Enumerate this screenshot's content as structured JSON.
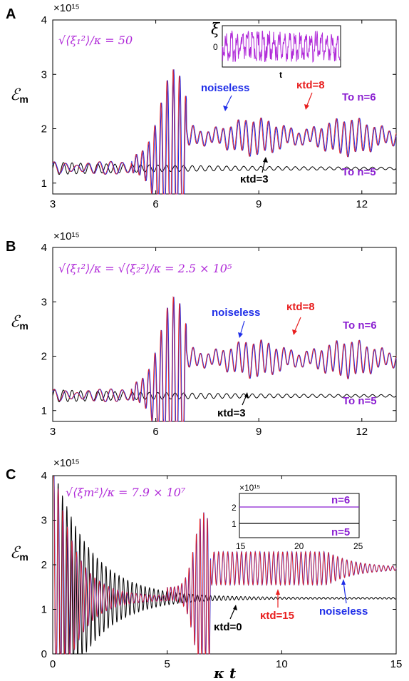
{
  "colors": {
    "noiseless": "#1f2ee8",
    "delayed": "#e81f1f",
    "black": "#000000",
    "purple": "#b02ad8",
    "violet": "#8b1fd1"
  },
  "ylabel": "ℰm",
  "xlabel": "κ t",
  "chart_data": [
    {
      "panel": "A",
      "type": "line",
      "formula": "√⟨ξ₁²⟩/κ = 50",
      "exponent": "×10¹⁵",
      "xlim": [
        3,
        13
      ],
      "ylim": [
        0.8,
        4
      ],
      "xticks": [
        "3",
        "6",
        "9",
        "12"
      ],
      "yticks": [
        "1",
        "2",
        "3",
        "4"
      ],
      "series": [
        {
          "name": "noiseless",
          "approx_mean_after_transition": 1.85,
          "transition_time": 6.9
        },
        {
          "name": "κtd=8",
          "approx_mean_after_transition": 1.85,
          "transition_time": 6.9
        },
        {
          "name": "κtd=3",
          "approx_mean_after_transition": 1.25
        }
      ],
      "annotations": [
        {
          "text": "noiseless",
          "color": "noiseless"
        },
        {
          "text": "κtd=8",
          "color": "delayed"
        },
        {
          "text": "κtd=3",
          "color": "black"
        },
        {
          "text": "To n=6",
          "color": "violet"
        },
        {
          "text": "To n=5",
          "color": "violet"
        }
      ],
      "inset": {
        "ylabel": "ξ",
        "ytick": "0",
        "xlabel": "t"
      }
    },
    {
      "panel": "B",
      "type": "line",
      "formula": "√⟨ξ₁²⟩/κ = √⟨ξ₂²⟩/κ = 2.5 × 10⁵",
      "exponent": "×10¹⁵",
      "xlim": [
        3,
        13
      ],
      "ylim": [
        0.8,
        4
      ],
      "xticks": [
        "3",
        "6",
        "9",
        "12"
      ],
      "yticks": [
        "1",
        "2",
        "3",
        "4"
      ],
      "series": [
        {
          "name": "noiseless",
          "approx_mean_after_transition": 1.95,
          "transition_time": 6.9
        },
        {
          "name": "κtd=8",
          "approx_mean_after_transition": 1.95,
          "transition_time": 6.9
        },
        {
          "name": "κtd=3",
          "approx_mean_after_transition": 1.25
        }
      ],
      "annotations": [
        {
          "text": "noiseless",
          "color": "noiseless"
        },
        {
          "text": "κtd=8",
          "color": "delayed"
        },
        {
          "text": "κtd=3",
          "color": "black"
        },
        {
          "text": "To n=6",
          "color": "violet"
        },
        {
          "text": "To n=5",
          "color": "violet"
        }
      ]
    },
    {
      "panel": "C",
      "type": "line",
      "formula": "√⟨ξm²⟩/κ = 7.9 × 10⁷",
      "exponent": "×10¹⁵",
      "xlim": [
        0,
        15
      ],
      "ylim": [
        0,
        4
      ],
      "xticks": [
        "0",
        "5",
        "10",
        "15"
      ],
      "yticks": [
        "0",
        "1",
        "2",
        "3",
        "4"
      ],
      "series": [
        {
          "name": "noiseless",
          "approx_final_value": 1.9,
          "transition_time": 6.9
        },
        {
          "name": "κtd=15",
          "approx_final_value": 1.9
        },
        {
          "name": "κtd=0",
          "approx_final_value": 1.25
        }
      ],
      "annotations": [
        {
          "text": "κtd=0",
          "color": "black"
        },
        {
          "text": "κtd=15",
          "color": "delayed"
        },
        {
          "text": "noiseless",
          "color": "noiseless"
        }
      ],
      "inset": {
        "exponent": "×10¹⁵",
        "xticks": [
          "15",
          "20",
          "25"
        ],
        "yticks": [
          "1",
          "2"
        ],
        "labels": [
          {
            "text": "n=6",
            "value": 1.9
          },
          {
            "text": "n=5",
            "value": 1.25
          }
        ]
      }
    }
  ]
}
